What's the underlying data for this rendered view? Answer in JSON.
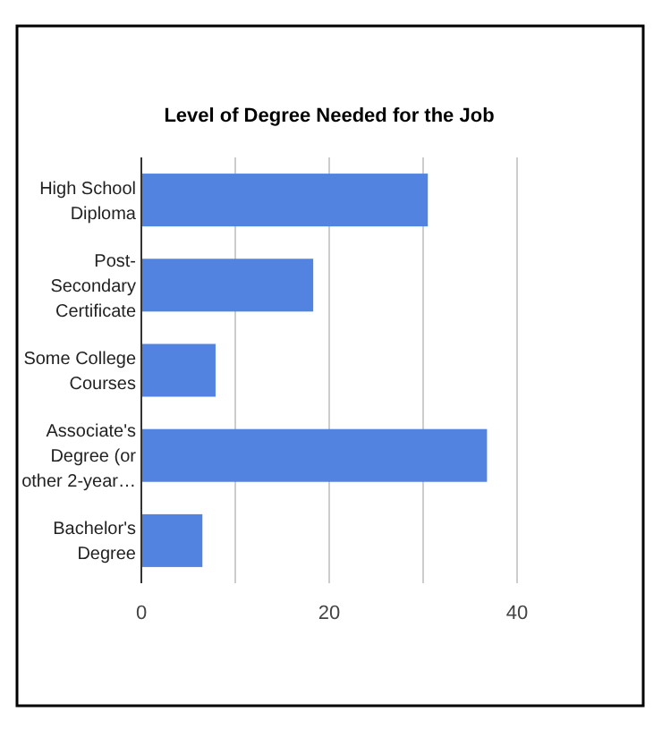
{
  "chart_data": {
    "type": "bar",
    "orientation": "horizontal",
    "title": "Level of Degree Needed for the Job",
    "categories": [
      "High School Diploma",
      "Post-Secondary Certificate",
      "Some College Courses",
      "Associate's Degree (or other 2-year…",
      "Bachelor's Degree"
    ],
    "values": [
      30.5,
      18.3,
      7.9,
      36.8,
      6.5
    ],
    "color": "#5383e0",
    "xlim": [
      0,
      40
    ],
    "xticks": [
      0,
      {
        "value": 10,
        "label": null
      },
      20,
      {
        "value": 30,
        "label": null
      },
      40
    ],
    "grid": "x"
  }
}
